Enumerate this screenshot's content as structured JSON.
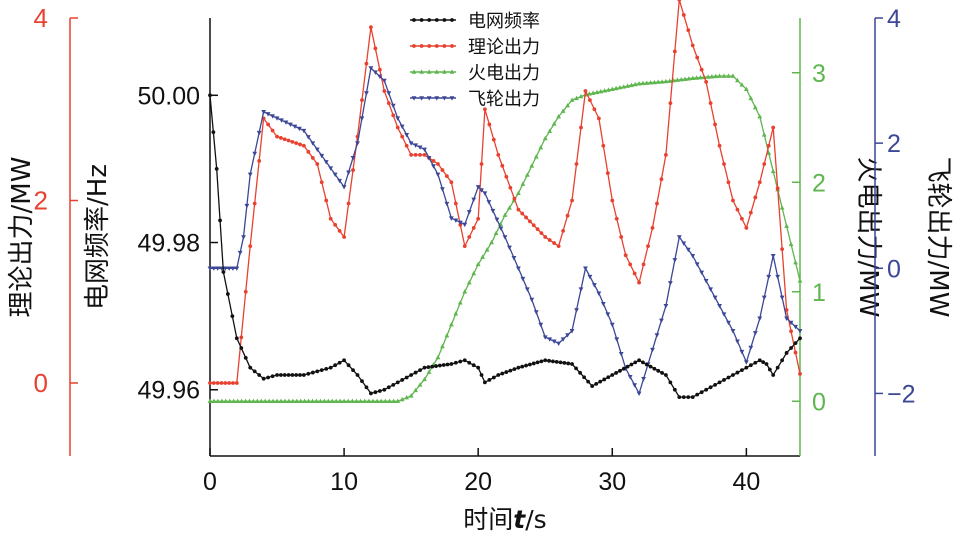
{
  "chart_data": {
    "type": "line",
    "x_axis": {
      "label_prefix": "时间",
      "label_var": "t",
      "label_suffix": "/s",
      "range": [
        0,
        44
      ],
      "ticks": [
        0,
        10,
        20,
        30,
        40
      ]
    },
    "axes": {
      "theoretical": {
        "label": "理论出力/MW",
        "range": [
          -0.8,
          4.0
        ],
        "ticks": [
          0,
          2,
          4
        ],
        "tick_labels": [
          "0",
          "2",
          "4"
        ],
        "color": "#e8412f"
      },
      "frequency": {
        "label": "电网频率/Hz",
        "range": [
          49.951,
          50.0105
        ],
        "ticks": [
          49.96,
          49.98,
          50.0
        ],
        "tick_labels": [
          "49.96",
          "49.98",
          "50.00"
        ],
        "color": "#111111"
      },
      "thermal": {
        "label": "火电出力/MW",
        "range": [
          -0.5,
          3.5
        ],
        "ticks": [
          0,
          1,
          2,
          3
        ],
        "tick_labels": [
          "0",
          "1",
          "2",
          "3"
        ],
        "color": "#5fb64f"
      },
      "flywheel": {
        "label": "飞轮出力/MW",
        "range": [
          -3,
          4
        ],
        "ticks": [
          -2,
          0,
          2,
          4
        ],
        "tick_labels": [
          "−2",
          "0",
          "2",
          "4"
        ],
        "color": "#3c4796"
      }
    },
    "legend_position": "top-center",
    "series": [
      {
        "name": "电网频率",
        "axis": "frequency",
        "color": "#111111",
        "marker": "dot",
        "points": [
          [
            0,
            50.0
          ],
          [
            0.5,
            49.99
          ],
          [
            1,
            49.976
          ],
          [
            2,
            49.967
          ],
          [
            3,
            49.963
          ],
          [
            4,
            49.9615
          ],
          [
            5,
            49.962
          ],
          [
            7,
            49.962
          ],
          [
            8,
            49.9625
          ],
          [
            9,
            49.963
          ],
          [
            10,
            49.964
          ],
          [
            11,
            49.962
          ],
          [
            12,
            49.9595
          ],
          [
            13,
            49.96
          ],
          [
            14,
            49.961
          ],
          [
            15,
            49.962
          ],
          [
            16,
            49.963
          ],
          [
            18,
            49.9635
          ],
          [
            19,
            49.964
          ],
          [
            20,
            49.963
          ],
          [
            20.5,
            49.961
          ],
          [
            21.5,
            49.962
          ],
          [
            23,
            49.963
          ],
          [
            25,
            49.964
          ],
          [
            27,
            49.9635
          ],
          [
            28.5,
            49.9605
          ],
          [
            30,
            49.962
          ],
          [
            32,
            49.964
          ],
          [
            34,
            49.962
          ],
          [
            35,
            49.959
          ],
          [
            36,
            49.959
          ],
          [
            37,
            49.96
          ],
          [
            38,
            49.961
          ],
          [
            39,
            49.962
          ],
          [
            40,
            49.963
          ],
          [
            41,
            49.964
          ],
          [
            41.5,
            49.9635
          ],
          [
            42,
            49.962
          ],
          [
            43,
            49.965
          ],
          [
            44,
            49.967
          ]
        ]
      },
      {
        "name": "理论出力",
        "axis": "theoretical",
        "color": "#e8412f",
        "marker": "dot",
        "points": [
          [
            0,
            0
          ],
          [
            2,
            0
          ],
          [
            3,
            1.5
          ],
          [
            4,
            2.9
          ],
          [
            5,
            2.7
          ],
          [
            7,
            2.6
          ],
          [
            8,
            2.4
          ],
          [
            9,
            1.8
          ],
          [
            10,
            1.6
          ],
          [
            11,
            2.7
          ],
          [
            12,
            3.9
          ],
          [
            13,
            3.2
          ],
          [
            14,
            2.8
          ],
          [
            15,
            2.5
          ],
          [
            16,
            2.5
          ],
          [
            17,
            2.4
          ],
          [
            18,
            2.2
          ],
          [
            19,
            1.5
          ],
          [
            20,
            1.8
          ],
          [
            20.5,
            3.0
          ],
          [
            21.5,
            2.5
          ],
          [
            23,
            1.9
          ],
          [
            25,
            1.6
          ],
          [
            26,
            1.5
          ],
          [
            27,
            2.0
          ],
          [
            28,
            3.2
          ],
          [
            29,
            2.9
          ],
          [
            30,
            2.0
          ],
          [
            31,
            1.4
          ],
          [
            32,
            1.1
          ],
          [
            33,
            1.7
          ],
          [
            34,
            2.5
          ],
          [
            35,
            4.2
          ],
          [
            36,
            3.7
          ],
          [
            37,
            3.3
          ],
          [
            38,
            2.6
          ],
          [
            39,
            2.0
          ],
          [
            40,
            1.7
          ],
          [
            41,
            2.2
          ],
          [
            42,
            2.8
          ],
          [
            43,
            0.8
          ],
          [
            44,
            0.1
          ]
        ]
      },
      {
        "name": "火电出力",
        "axis": "thermal",
        "color": "#5fb64f",
        "marker": "triangle-up",
        "points": [
          [
            0,
            0
          ],
          [
            5,
            0
          ],
          [
            10,
            0
          ],
          [
            14,
            0
          ],
          [
            15,
            0.05
          ],
          [
            16,
            0.2
          ],
          [
            17,
            0.4
          ],
          [
            18,
            0.7
          ],
          [
            19,
            1.0
          ],
          [
            20,
            1.25
          ],
          [
            21,
            1.45
          ],
          [
            22,
            1.7
          ],
          [
            23,
            1.9
          ],
          [
            24,
            2.15
          ],
          [
            25,
            2.4
          ],
          [
            26,
            2.6
          ],
          [
            27,
            2.75
          ],
          [
            28,
            2.8
          ],
          [
            30,
            2.85
          ],
          [
            32,
            2.9
          ],
          [
            34,
            2.92
          ],
          [
            36,
            2.95
          ],
          [
            38,
            2.97
          ],
          [
            39,
            2.97
          ],
          [
            40,
            2.85
          ],
          [
            41,
            2.6
          ],
          [
            42,
            2.1
          ],
          [
            43,
            1.6
          ],
          [
            44,
            1.1
          ]
        ]
      },
      {
        "name": "飞轮出力",
        "axis": "flywheel",
        "color": "#3c4796",
        "marker": "triangle-down",
        "points": [
          [
            0,
            0
          ],
          [
            2,
            0
          ],
          [
            2.5,
            0.5
          ],
          [
            3,
            1.5
          ],
          [
            4,
            2.5
          ],
          [
            5,
            2.4
          ],
          [
            6,
            2.3
          ],
          [
            7,
            2.2
          ],
          [
            8,
            1.9
          ],
          [
            9,
            1.6
          ],
          [
            10,
            1.3
          ],
          [
            11,
            2.0
          ],
          [
            12,
            3.2
          ],
          [
            13,
            3.0
          ],
          [
            14,
            2.4
          ],
          [
            15,
            2.0
          ],
          [
            16,
            1.9
          ],
          [
            17,
            1.5
          ],
          [
            18,
            0.8
          ],
          [
            19,
            0.7
          ],
          [
            20,
            1.3
          ],
          [
            20.5,
            1.2
          ],
          [
            22,
            0.5
          ],
          [
            23,
            0
          ],
          [
            24,
            -0.5
          ],
          [
            25,
            -1.1
          ],
          [
            26,
            -1.2
          ],
          [
            27,
            -1.0
          ],
          [
            28,
            0
          ],
          [
            29,
            -0.4
          ],
          [
            30,
            -0.9
          ],
          [
            31,
            -1.6
          ],
          [
            32,
            -2.0
          ],
          [
            33,
            -1.3
          ],
          [
            34,
            -0.6
          ],
          [
            35,
            0.5
          ],
          [
            36,
            0.2
          ],
          [
            37,
            -0.2
          ],
          [
            38,
            -0.6
          ],
          [
            39,
            -1.0
          ],
          [
            40,
            -1.5
          ],
          [
            41,
            -0.8
          ],
          [
            42,
            0.2
          ],
          [
            43,
            -0.8
          ],
          [
            44,
            -1.0
          ]
        ]
      }
    ]
  }
}
